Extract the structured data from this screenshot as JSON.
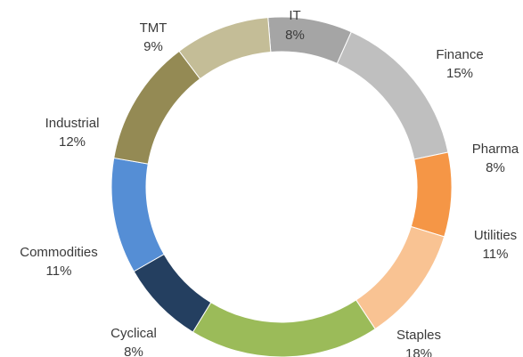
{
  "chart_data": {
    "type": "pie",
    "variant": "doughnut",
    "legend": "none",
    "slices": [
      {
        "name": "IT",
        "label": "8%",
        "value": 8,
        "color": "#a5a5a5"
      },
      {
        "name": "Finance",
        "label": "15%",
        "value": 15,
        "color": "#bfbfbf"
      },
      {
        "name": "Pharma",
        "label": "8%",
        "value": 8,
        "color": "#f59646"
      },
      {
        "name": "Utilities",
        "label": "11%",
        "value": 11,
        "color": "#f9c393"
      },
      {
        "name": "Staples",
        "label": "18%",
        "value": 18,
        "color": "#9bbb59"
      },
      {
        "name": "Cyclical",
        "label": "8%",
        "value": 8,
        "color": "#243f60"
      },
      {
        "name": "Commodities",
        "label": "11%",
        "value": 11,
        "color": "#558ed5"
      },
      {
        "name": "Industrial",
        "label": "12%",
        "value": 12,
        "color": "#948a54"
      },
      {
        "name": "TMT",
        "label": "9%",
        "value": 9,
        "color": "#c4bd97"
      }
    ]
  }
}
